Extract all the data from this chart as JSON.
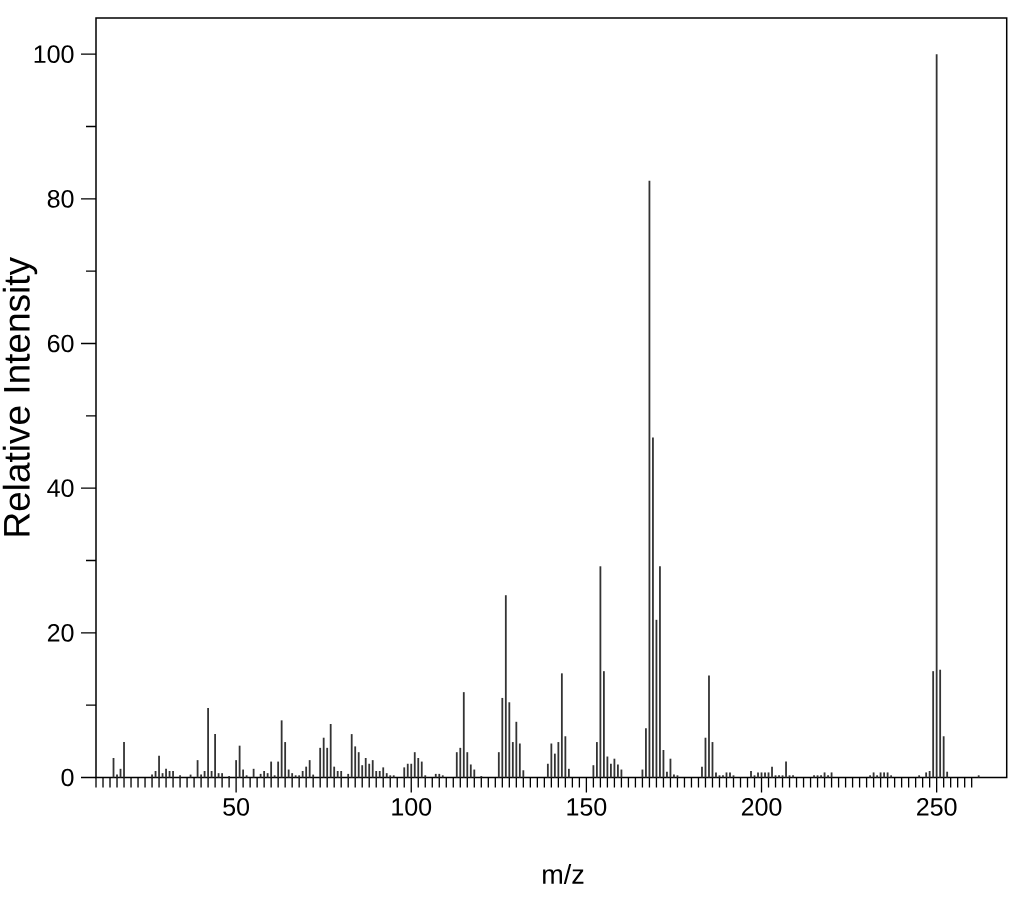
{
  "chart_data": {
    "type": "bar",
    "xlabel": "m/z",
    "ylabel": "Relative Intensity",
    "color": "#333333",
    "x": [
      15,
      16,
      17,
      18,
      26,
      27,
      28,
      29,
      30,
      31,
      32,
      34,
      37,
      39,
      40,
      41,
      42,
      43,
      44,
      45,
      46,
      48,
      50,
      51,
      52,
      53,
      55,
      57,
      58,
      59,
      60,
      61,
      62,
      63,
      64,
      65,
      66,
      67,
      68,
      69,
      70,
      71,
      72,
      74,
      75,
      76,
      77,
      78,
      79,
      80,
      82,
      83,
      84,
      85,
      86,
      87,
      88,
      89,
      90,
      91,
      92,
      93,
      94,
      95,
      98,
      99,
      100,
      101,
      102,
      103,
      104,
      107,
      108,
      109,
      113,
      114,
      115,
      116,
      117,
      118,
      120,
      125,
      126,
      127,
      128,
      129,
      130,
      131,
      132,
      139,
      140,
      141,
      142,
      143,
      144,
      145,
      152,
      153,
      154,
      155,
      156,
      157,
      158,
      159,
      160,
      166,
      167,
      168,
      169,
      170,
      171,
      172,
      173,
      174,
      175,
      176,
      183,
      184,
      185,
      186,
      187,
      188,
      189,
      190,
      191,
      192,
      197,
      198,
      199,
      200,
      201,
      202,
      203,
      204,
      205,
      206,
      207,
      208,
      209,
      215,
      216,
      217,
      218,
      219,
      220,
      231,
      232,
      233,
      234,
      235,
      236,
      237,
      245,
      247,
      248,
      249,
      250,
      251,
      252,
      253,
      262
    ],
    "values": [
      2.7,
      0.4,
      1.2,
      4.9,
      0.4,
      0.9,
      3.0,
      0.6,
      1.2,
      0.9,
      0.9,
      0.3,
      0.4,
      2.4,
      0.4,
      0.9,
      9.6,
      0.9,
      6.0,
      0.6,
      0.6,
      0.2,
      2.4,
      4.4,
      1.1,
      0.3,
      1.2,
      0.5,
      0.9,
      0.6,
      2.2,
      0.3,
      2.2,
      7.9,
      4.9,
      1.1,
      0.6,
      0.3,
      0.3,
      0.9,
      1.5,
      2.4,
      0.4,
      4.1,
      5.5,
      4.1,
      7.4,
      1.5,
      0.9,
      0.9,
      0.5,
      6.0,
      4.3,
      3.5,
      1.7,
      2.7,
      1.9,
      2.4,
      0.9,
      0.9,
      1.4,
      0.6,
      0.3,
      0.3,
      1.4,
      1.9,
      1.9,
      3.5,
      2.7,
      2.2,
      0.3,
      0.5,
      0.5,
      0.3,
      3.5,
      4.1,
      11.8,
      3.5,
      1.8,
      1.1,
      0.2,
      3.5,
      11.0,
      25.2,
      10.4,
      4.9,
      7.7,
      4.7,
      1.0,
      1.9,
      4.7,
      3.3,
      4.9,
      14.4,
      5.7,
      1.2,
      1.7,
      4.9,
      29.2,
      14.7,
      2.9,
      1.9,
      2.6,
      1.8,
      1.1,
      1.1,
      6.8,
      82.5,
      47.0,
      21.8,
      29.2,
      3.8,
      0.8,
      2.6,
      0.4,
      0.3,
      1.5,
      5.5,
      14.1,
      4.9,
      0.7,
      0.3,
      0.3,
      0.7,
      0.7,
      0.3,
      0.9,
      0.3,
      0.7,
      0.7,
      0.7,
      0.7,
      1.5,
      0.3,
      0.3,
      0.3,
      2.2,
      0.3,
      0.3,
      0.3,
      0.3,
      0.3,
      0.7,
      0.3,
      0.7,
      0.3,
      0.7,
      0.3,
      0.7,
      0.7,
      0.7,
      0.3,
      0.3,
      0.7,
      0.9,
      14.7,
      100,
      14.9,
      5.7,
      0.8,
      0.3
    ],
    "xlim": [
      10,
      270
    ],
    "ylim": [
      0,
      105
    ],
    "xticks": [
      {
        "value": 10,
        "label": null
      },
      {
        "value": 12,
        "label": null
      },
      {
        "value": 14,
        "label": null
      },
      {
        "value": 16,
        "label": null
      },
      {
        "value": 18,
        "label": null
      },
      {
        "value": 20,
        "label": null
      },
      {
        "value": 22,
        "label": null
      },
      {
        "value": 24,
        "label": null
      },
      {
        "value": 26,
        "label": null
      },
      {
        "value": 28,
        "label": null
      },
      {
        "value": 30,
        "label": null
      },
      {
        "value": 32,
        "label": null
      },
      {
        "value": 34,
        "label": null
      },
      {
        "value": 36,
        "label": null
      },
      {
        "value": 38,
        "label": null
      },
      {
        "value": 40,
        "label": null
      },
      {
        "value": 42,
        "label": null
      },
      {
        "value": 44,
        "label": null
      },
      {
        "value": 46,
        "label": null
      },
      {
        "value": 48,
        "label": null
      },
      50,
      {
        "value": 52,
        "label": null
      },
      {
        "value": 54,
        "label": null
      },
      {
        "value": 56,
        "label": null
      },
      {
        "value": 58,
        "label": null
      },
      {
        "value": 60,
        "label": null
      },
      {
        "value": 62,
        "label": null
      },
      {
        "value": 64,
        "label": null
      },
      {
        "value": 66,
        "label": null
      },
      {
        "value": 68,
        "label": null
      },
      {
        "value": 70,
        "label": null
      },
      {
        "value": 72,
        "label": null
      },
      {
        "value": 74,
        "label": null
      },
      {
        "value": 76,
        "label": null
      },
      {
        "value": 78,
        "label": null
      },
      {
        "value": 80,
        "label": null
      },
      {
        "value": 82,
        "label": null
      },
      {
        "value": 84,
        "label": null
      },
      {
        "value": 86,
        "label": null
      },
      {
        "value": 88,
        "label": null
      },
      {
        "value": 90,
        "label": null
      },
      {
        "value": 92,
        "label": null
      },
      {
        "value": 94,
        "label": null
      },
      {
        "value": 96,
        "label": null
      },
      {
        "value": 98,
        "label": null
      },
      100,
      {
        "value": 102,
        "label": null
      },
      {
        "value": 104,
        "label": null
      },
      {
        "value": 106,
        "label": null
      },
      {
        "value": 108,
        "label": null
      },
      {
        "value": 110,
        "label": null
      },
      {
        "value": 112,
        "label": null
      },
      {
        "value": 114,
        "label": null
      },
      {
        "value": 116,
        "label": null
      },
      {
        "value": 118,
        "label": null
      },
      {
        "value": 120,
        "label": null
      },
      {
        "value": 122,
        "label": null
      },
      {
        "value": 124,
        "label": null
      },
      {
        "value": 126,
        "label": null
      },
      {
        "value": 128,
        "label": null
      },
      {
        "value": 130,
        "label": null
      },
      {
        "value": 132,
        "label": null
      },
      {
        "value": 134,
        "label": null
      },
      {
        "value": 136,
        "label": null
      },
      {
        "value": 138,
        "label": null
      },
      {
        "value": 140,
        "label": null
      },
      {
        "value": 142,
        "label": null
      },
      {
        "value": 144,
        "label": null
      },
      {
        "value": 146,
        "label": null
      },
      {
        "value": 148,
        "label": null
      },
      150,
      {
        "value": 152,
        "label": null
      },
      {
        "value": 154,
        "label": null
      },
      {
        "value": 156,
        "label": null
      },
      {
        "value": 158,
        "label": null
      },
      {
        "value": 160,
        "label": null
      },
      {
        "value": 162,
        "label": null
      },
      {
        "value": 164,
        "label": null
      },
      {
        "value": 166,
        "label": null
      },
      {
        "value": 168,
        "label": null
      },
      {
        "value": 170,
        "label": null
      },
      {
        "value": 172,
        "label": null
      },
      {
        "value": 174,
        "label": null
      },
      {
        "value": 176,
        "label": null
      },
      {
        "value": 178,
        "label": null
      },
      {
        "value": 180,
        "label": null
      },
      {
        "value": 182,
        "label": null
      },
      {
        "value": 184,
        "label": null
      },
      {
        "value": 186,
        "label": null
      },
      {
        "value": 188,
        "label": null
      },
      {
        "value": 190,
        "label": null
      },
      {
        "value": 192,
        "label": null
      },
      {
        "value": 194,
        "label": null
      },
      {
        "value": 196,
        "label": null
      },
      {
        "value": 198,
        "label": null
      },
      200,
      {
        "value": 202,
        "label": null
      },
      {
        "value": 204,
        "label": null
      },
      {
        "value": 206,
        "label": null
      },
      {
        "value": 208,
        "label": null
      },
      {
        "value": 210,
        "label": null
      },
      {
        "value": 212,
        "label": null
      },
      {
        "value": 214,
        "label": null
      },
      {
        "value": 216,
        "label": null
      },
      {
        "value": 218,
        "label": null
      },
      {
        "value": 220,
        "label": null
      },
      {
        "value": 222,
        "label": null
      },
      {
        "value": 224,
        "label": null
      },
      {
        "value": 226,
        "label": null
      },
      {
        "value": 228,
        "label": null
      },
      {
        "value": 230,
        "label": null
      },
      {
        "value": 232,
        "label": null
      },
      {
        "value": 234,
        "label": null
      },
      {
        "value": 236,
        "label": null
      },
      {
        "value": 238,
        "label": null
      },
      {
        "value": 240,
        "label": null
      },
      {
        "value": 242,
        "label": null
      },
      {
        "value": 244,
        "label": null
      },
      {
        "value": 246,
        "label": null
      },
      {
        "value": 248,
        "label": null
      },
      250,
      {
        "value": 252,
        "label": null
      },
      {
        "value": 254,
        "label": null
      },
      {
        "value": 256,
        "label": null
      },
      {
        "value": 258,
        "label": null
      },
      {
        "value": 260,
        "label": null
      }
    ],
    "yticks": [
      0,
      {
        "value": 10,
        "label": null
      },
      20,
      {
        "value": 30,
        "label": null
      },
      40,
      {
        "value": 50,
        "label": null
      },
      60,
      {
        "value": 70,
        "label": null
      },
      80,
      {
        "value": 90,
        "label": null
      },
      100
    ]
  }
}
